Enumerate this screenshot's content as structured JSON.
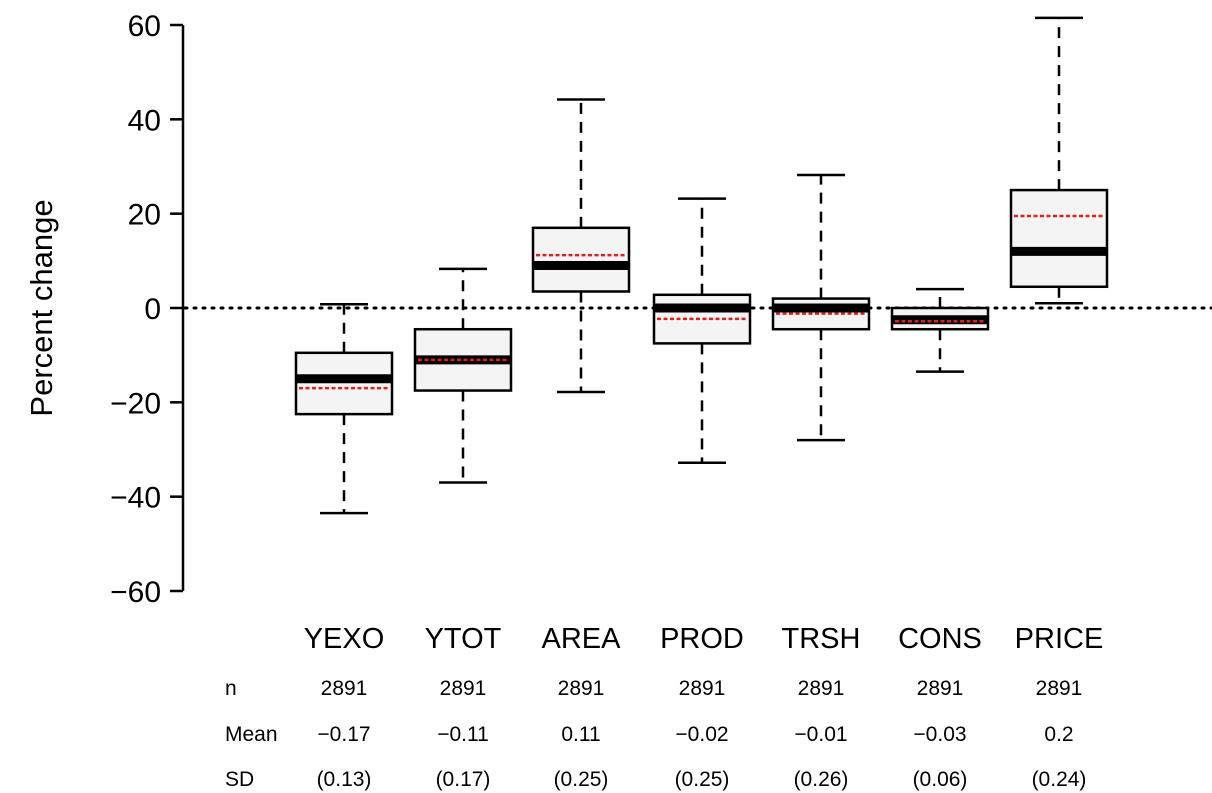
{
  "chart_data": {
    "type": "boxplot",
    "title": "",
    "xlabel": "",
    "ylabel": "Percent change",
    "ylim": [
      -60,
      60
    ],
    "yticks": [
      {
        "value": 60,
        "label": "60"
      },
      {
        "value": 40,
        "label": "40"
      },
      {
        "value": 20,
        "label": "20"
      },
      {
        "value": 0,
        "label": "0"
      },
      {
        "value": -20,
        "label": "−20"
      },
      {
        "value": -40,
        "label": "−40"
      },
      {
        "value": -60,
        "label": "−60"
      }
    ],
    "reference_line": {
      "value": 0,
      "style": "dotted"
    },
    "categories": [
      "YEXO",
      "YTOT",
      "AREA",
      "PROD",
      "TRSH",
      "CONS",
      "PRICE"
    ],
    "boxes": [
      {
        "category": "YEXO",
        "whisker_low": -43.5,
        "q1": -22.5,
        "median": -15.0,
        "q3": -9.5,
        "whisker_high": 0.8,
        "mean": -17.0
      },
      {
        "category": "YTOT",
        "whisker_low": -37.0,
        "q1": -17.5,
        "median": -11.0,
        "q3": -4.5,
        "whisker_high": 8.3,
        "mean": -11.0
      },
      {
        "category": "AREA",
        "whisker_low": -17.8,
        "q1": 3.5,
        "median": 9.0,
        "q3": 17.0,
        "whisker_high": 44.2,
        "mean": 11.2
      },
      {
        "category": "PROD",
        "whisker_low": -32.8,
        "q1": -7.5,
        "median": 0.0,
        "q3": 2.8,
        "whisker_high": 23.2,
        "mean": -2.3
      },
      {
        "category": "TRSH",
        "whisker_low": -28.0,
        "q1": -4.5,
        "median": 0.0,
        "q3": 2.0,
        "whisker_high": 28.2,
        "mean": -1.2
      },
      {
        "category": "CONS",
        "whisker_low": -13.5,
        "q1": -4.5,
        "median": -2.5,
        "q3": 0.0,
        "whisker_high": 4.0,
        "mean": -2.8
      },
      {
        "category": "PRICE",
        "whisker_low": 1.0,
        "q1": 4.5,
        "median": 12.0,
        "q3": 25.0,
        "whisker_high": 61.5,
        "mean": 19.5
      }
    ],
    "stats_table": {
      "rows": [
        {
          "label": "n",
          "values": [
            "2891",
            "2891",
            "2891",
            "2891",
            "2891",
            "2891",
            "2891"
          ]
        },
        {
          "label": "Mean",
          "values": [
            "−0.17",
            "−0.11",
            "0.11",
            "−0.02",
            "−0.01",
            "−0.03",
            "0.2"
          ]
        },
        {
          "label": "SD",
          "values": [
            "(0.13)",
            "(0.17)",
            "(0.25)",
            "(0.25)",
            "(0.26)",
            "(0.06)",
            "(0.24)"
          ]
        }
      ]
    },
    "colors": {
      "box_fill": "#f4f4f4",
      "box_stroke": "#000000",
      "median": "#000000",
      "mean": "#e0201b",
      "axis": "#000000"
    }
  }
}
